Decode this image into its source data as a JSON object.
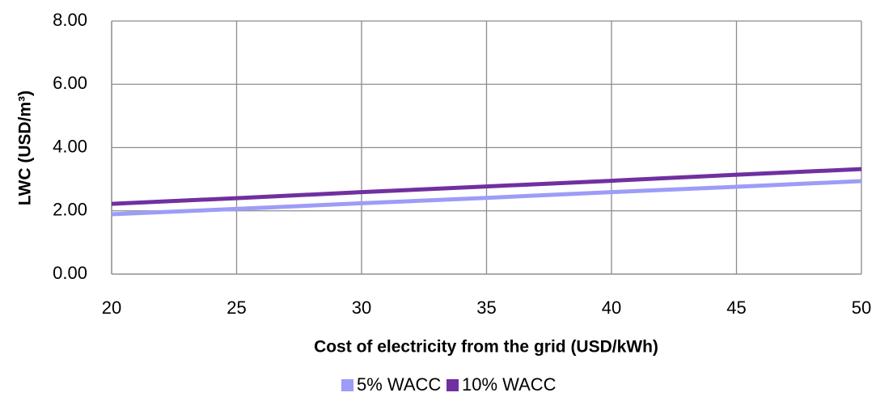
{
  "chart_data": {
    "type": "line",
    "x_label": "Cost of electricity from the grid (USD/kWh)",
    "y_label": "LWC (USD/m³)",
    "x": [
      20,
      25,
      30,
      35,
      40,
      45,
      50
    ],
    "series": [
      {
        "name": "5% WACC",
        "color": "#9d9cf7",
        "values": [
          1.89,
          2.06,
          2.24,
          2.41,
          2.59,
          2.76,
          2.94
        ]
      },
      {
        "name": "10% WACC",
        "color": "#7030a0",
        "values": [
          2.22,
          2.4,
          2.59,
          2.77,
          2.95,
          3.14,
          3.32
        ]
      }
    ],
    "xlim": [
      20,
      50
    ],
    "xticks": [
      20,
      25,
      30,
      35,
      40,
      45,
      50
    ],
    "ylim": [
      0,
      8
    ],
    "yticks": [
      {
        "value": 0,
        "label": "0.00"
      },
      {
        "value": 2,
        "label": "2.00"
      },
      {
        "value": 4,
        "label": "4.00"
      },
      {
        "value": 6,
        "label": "6.00"
      },
      {
        "value": 8,
        "label": "8.00"
      }
    ],
    "grid": true,
    "legend": "bottom"
  }
}
